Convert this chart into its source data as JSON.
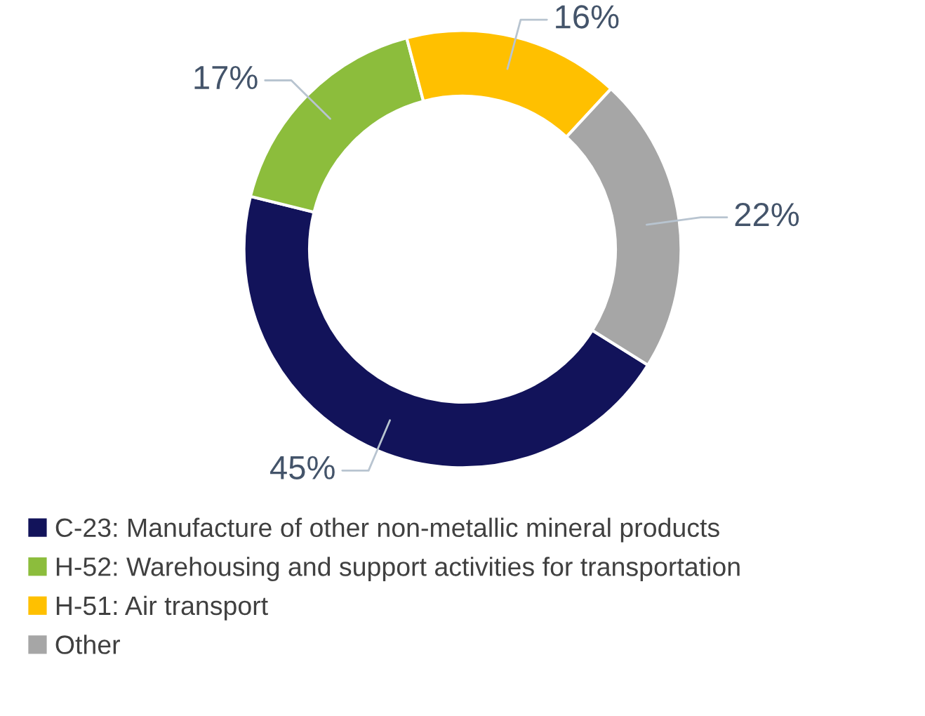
{
  "chart_data": {
    "type": "donut",
    "categories": [
      "C-23: Manufacture of other non-metallic mineral products",
      "H-52: Warehousing and support activities for transportation",
      "H-51: Air transport",
      "Other"
    ],
    "values": [
      45,
      17,
      16,
      22
    ],
    "colors": [
      "#12135a",
      "#8cbd3c",
      "#ffc000",
      "#a6a6a6"
    ],
    "value_labels": [
      "45%",
      "17%",
      "16%",
      "22%"
    ],
    "legend": "bottom"
  }
}
